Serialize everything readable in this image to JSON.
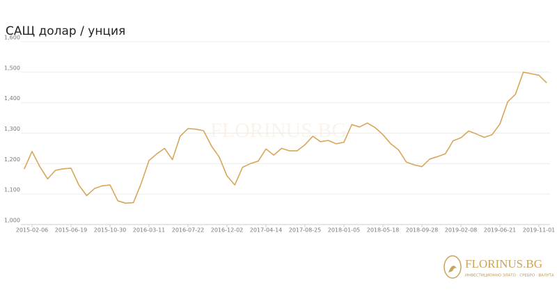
{
  "chart_data": {
    "type": "line",
    "title": "САЩ долар / унция",
    "brand": "FLORINUS.BG",
    "brand_tagline": "ИНВЕСТИЦИОННО ЗЛАТО · СРЕБРО · ВАЛУТА",
    "categories": [
      null,
      "2015-02-06",
      null,
      null,
      null,
      null,
      "2015-06-19",
      null,
      null,
      null,
      null,
      "2015-10-30",
      null,
      null,
      null,
      null,
      "2016-03-11",
      null,
      null,
      null,
      null,
      "2016-07-22",
      null,
      null,
      null,
      null,
      "2016-12-02",
      null,
      null,
      null,
      null,
      "2017-04-14",
      null,
      null,
      null,
      null,
      "2017-08-25",
      null,
      null,
      null,
      null,
      "2018-01-05",
      null,
      null,
      null,
      null,
      "2018-05-18",
      null,
      null,
      null,
      null,
      "2018-09-28",
      null,
      null,
      null,
      null,
      "2019-02-08",
      null,
      null,
      null,
      null,
      "2019-06-21",
      null,
      null,
      null,
      null,
      "2019-11-01",
      null
    ],
    "series": [
      {
        "name": "САЩ долар / унция",
        "color": "#d9a55a",
        "values": [
          1182,
          1240,
          1190,
          1150,
          1178,
          1183,
          1185,
          1130,
          1095,
          1118,
          1127,
          1130,
          1078,
          1070,
          1072,
          1135,
          1210,
          1232,
          1250,
          1213,
          1290,
          1315,
          1313,
          1308,
          1258,
          1222,
          1160,
          1130,
          1188,
          1200,
          1208,
          1248,
          1228,
          1250,
          1242,
          1242,
          1262,
          1290,
          1272,
          1276,
          1265,
          1270,
          1328,
          1320,
          1333,
          1318,
          1295,
          1265,
          1245,
          1205,
          1196,
          1190,
          1215,
          1223,
          1232,
          1275,
          1285,
          1307,
          1297,
          1286,
          1295,
          1330,
          1403,
          1428,
          1500,
          1495,
          1490,
          1465
        ]
      }
    ],
    "ylim": [
      1000,
      1600
    ],
    "yticks": [
      {
        "value": 1000,
        "label": "1,000"
      },
      {
        "value": 1100,
        "label": "1,100"
      },
      {
        "value": 1200,
        "label": "1,200"
      },
      {
        "value": 1300,
        "label": "1,300"
      },
      {
        "value": 1400,
        "label": "1,400"
      },
      {
        "value": 1500,
        "label": "1,500"
      },
      {
        "value": 1600,
        "label": "1,600"
      }
    ],
    "grid": true
  }
}
